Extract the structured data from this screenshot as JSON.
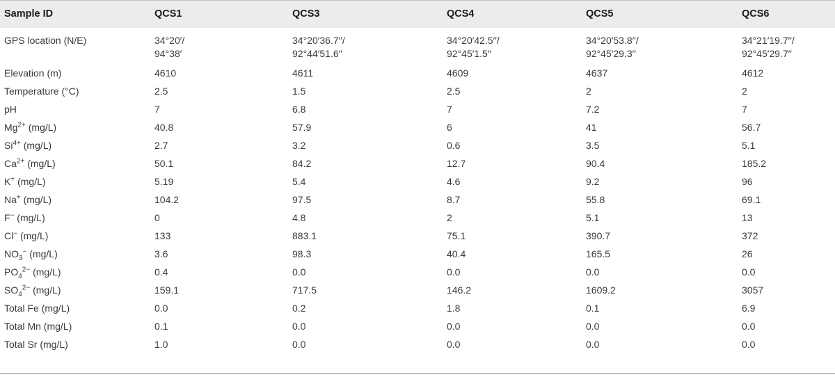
{
  "table": {
    "headers": [
      "Sample ID",
      "QCS1",
      "QCS3",
      "QCS4",
      "QCS5",
      "QCS6"
    ],
    "rows": [
      {
        "label": "GPS location (N/E)",
        "values": [
          [
            "34°20′/",
            "94°38′"
          ],
          [
            "34°20′36.7′′/",
            "92°44′51.6′′"
          ],
          [
            "34°20′42.5′′/",
            "92°45′1.5′′"
          ],
          [
            "34°20′53.8′′/",
            "92°45′29.3′′"
          ],
          [
            "34°21′19.7′′/",
            "92°45′29.7′′"
          ]
        ]
      },
      {
        "label": "Elevation (m)",
        "values": [
          "4610",
          "4611",
          "4609",
          "4637",
          "4612"
        ]
      },
      {
        "label": "Temperature (°C)",
        "values": [
          "2.5",
          "1.5",
          "2.5",
          "2",
          "2"
        ]
      },
      {
        "label": "pH",
        "values": [
          "7",
          "6.8",
          "7",
          "7.2",
          "7"
        ]
      },
      {
        "label_base": "Mg",
        "label_sup": "2+",
        "label_rest": " (mg/L)",
        "values": [
          "40.8",
          "57.9",
          "6",
          "41",
          "56.7"
        ]
      },
      {
        "label_base": "Si",
        "label_sup": "4+",
        "label_rest": " (mg/L)",
        "values": [
          "2.7",
          "3.2",
          "0.6",
          "3.5",
          "5.1"
        ]
      },
      {
        "label_base": "Ca",
        "label_sup": "2+",
        "label_rest": " (mg/L)",
        "values": [
          "50.1",
          "84.2",
          "12.7",
          "90.4",
          "185.2"
        ]
      },
      {
        "label_base": "K",
        "label_sup": "+",
        "label_rest": " (mg/L)",
        "values": [
          "5.19",
          "5.4",
          "4.6",
          "9.2",
          "96"
        ]
      },
      {
        "label_base": "Na",
        "label_sup": "+",
        "label_rest": " (mg/L)",
        "values": [
          "104.2",
          "97.5",
          "8.7",
          "55.8",
          "69.1"
        ]
      },
      {
        "label_base": "F",
        "label_sup": "−",
        "label_rest": " (mg/L)",
        "values": [
          "0",
          "4.8",
          "2",
          "5.1",
          "13"
        ]
      },
      {
        "label_base": "Cl",
        "label_sup": "−",
        "label_rest": " (mg/L)",
        "values": [
          "133",
          "883.1",
          "75.1",
          "390.7",
          "372"
        ]
      },
      {
        "label_base": "NO",
        "label_sub": "3",
        "label_sup": "−",
        "label_rest": " (mg/L)",
        "values": [
          "3.6",
          "98.3",
          "40.4",
          "165.5",
          "26"
        ]
      },
      {
        "label_base": "PO",
        "label_sub": "4",
        "label_sup": "2−",
        "label_rest": " (mg/L)",
        "values": [
          "0.4",
          "0.0",
          "0.0",
          "0.0",
          "0.0"
        ]
      },
      {
        "label_base": "SO",
        "label_sub": "4",
        "label_sup": "2−",
        "label_rest": " (mg/L)",
        "values": [
          "159.1",
          "717.5",
          "146.2",
          "1609.2",
          "3057"
        ]
      },
      {
        "label": "Total Fe (mg/L)",
        "values": [
          "0.0",
          "0.2",
          "1.8",
          "0.1",
          "6.9"
        ]
      },
      {
        "label": "Total Mn (mg/L)",
        "values": [
          "0.1",
          "0.0",
          "0.0",
          "0.0",
          "0.0"
        ]
      },
      {
        "label": "Total Sr (mg/L)",
        "values": [
          "1.0",
          "0.0",
          "0.0",
          "0.0",
          "0.0"
        ]
      }
    ]
  }
}
